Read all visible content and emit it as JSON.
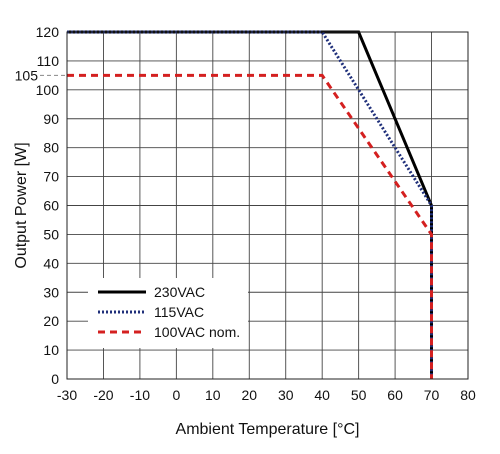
{
  "chart_data": {
    "type": "line",
    "xlabel": "Ambient Temperature [°C]",
    "ylabel": "Output Power [W]",
    "xlim": [
      -30,
      80
    ],
    "ylim": [
      0,
      120
    ],
    "x_ticks": [
      -30,
      -20,
      -10,
      0,
      10,
      20,
      30,
      40,
      50,
      60,
      70,
      80
    ],
    "y_ticks": [
      0,
      10,
      20,
      30,
      40,
      50,
      60,
      70,
      80,
      90,
      100,
      110,
      120
    ],
    "grid": true,
    "legend_position": "bottom-left",
    "reference_lines": [
      {
        "label": "105",
        "y": 105,
        "style": "dashed"
      }
    ],
    "series": [
      {
        "name": "230VAC",
        "color": "#000000",
        "style": "solid",
        "points": [
          [
            -30,
            120
          ],
          [
            50,
            120
          ],
          [
            70,
            60
          ],
          [
            70,
            0
          ]
        ]
      },
      {
        "name": "115VAC",
        "color": "#1f2f7a",
        "style": "dotted",
        "points": [
          [
            -30,
            120
          ],
          [
            40,
            120
          ],
          [
            70,
            60
          ],
          [
            70,
            0
          ]
        ]
      },
      {
        "name": "100VAC nom.",
        "color": "#d42020",
        "style": "dashed",
        "points": [
          [
            -30,
            105
          ],
          [
            40,
            105
          ],
          [
            70,
            50
          ],
          [
            70,
            0
          ]
        ]
      }
    ]
  }
}
